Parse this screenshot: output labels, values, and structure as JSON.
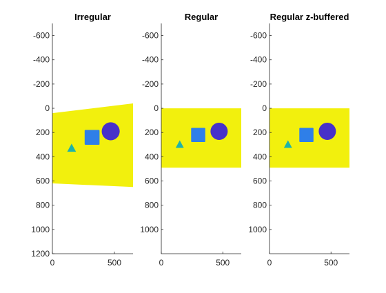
{
  "colors": {
    "background": "#ffffff",
    "axis": "#262626",
    "image_fill": "#f2f00d",
    "triangle": "#1fb3a8",
    "square": "#2f7fe8",
    "circle": "#4731c9"
  },
  "chart_data": [
    {
      "type": "image",
      "title": "Irregular",
      "xlim": [
        0,
        650
      ],
      "ylim": [
        -700,
        1200
      ],
      "y_reversed": true,
      "xticks": [
        0,
        500
      ],
      "yticks": [
        -600,
        -400,
        -200,
        0,
        200,
        400,
        600,
        800,
        1000,
        1200
      ],
      "xtick_labels": [
        "0",
        "500"
      ],
      "ytick_labels": [
        "-600",
        "-400",
        "-200",
        "0",
        "200",
        "400",
        "600",
        "800",
        "1000",
        "1200"
      ],
      "grid": false,
      "image_region": [
        [
          0,
          40
        ],
        [
          650,
          -40
        ],
        [
          650,
          650
        ],
        [
          0,
          620
        ]
      ],
      "shapes": [
        {
          "kind": "triangle",
          "center": [
            155,
            330
          ],
          "size": 75
        },
        {
          "kind": "square",
          "center": [
            320,
            240
          ],
          "size": 120
        },
        {
          "kind": "circle",
          "center": [
            470,
            190
          ],
          "size": 145
        }
      ]
    },
    {
      "type": "image",
      "title": "Regular",
      "xlim": [
        0,
        650
      ],
      "ylim": [
        -700,
        1200
      ],
      "y_reversed": true,
      "xticks": [
        0,
        500
      ],
      "yticks": [
        -600,
        -400,
        -200,
        0,
        200,
        400,
        600,
        800,
        1000
      ],
      "xtick_labels": [
        "0",
        "500"
      ],
      "ytick_labels": [
        "-600",
        "-400",
        "-200",
        "0",
        "200",
        "400",
        "600",
        "800",
        "1000"
      ],
      "grid": false,
      "image_region": [
        [
          0,
          0
        ],
        [
          650,
          0
        ],
        [
          650,
          490
        ],
        [
          0,
          490
        ]
      ],
      "shapes": [
        {
          "kind": "triangle",
          "center": [
            150,
            300
          ],
          "size": 70
        },
        {
          "kind": "square",
          "center": [
            300,
            220
          ],
          "size": 115
        },
        {
          "kind": "circle",
          "center": [
            470,
            190
          ],
          "size": 140
        }
      ]
    },
    {
      "type": "image",
      "title": "Regular z-buffered",
      "xlim": [
        0,
        650
      ],
      "ylim": [
        -700,
        1200
      ],
      "y_reversed": true,
      "xticks": [
        0,
        500
      ],
      "yticks": [
        -600,
        -400,
        -200,
        0,
        200,
        400,
        600,
        800,
        1000
      ],
      "xtick_labels": [
        "0",
        "500"
      ],
      "ytick_labels": [
        "-600",
        "-400",
        "-200",
        "0",
        "200",
        "400",
        "600",
        "800",
        "1000"
      ],
      "grid": false,
      "image_region": [
        [
          0,
          0
        ],
        [
          650,
          0
        ],
        [
          650,
          490
        ],
        [
          0,
          490
        ]
      ],
      "shapes": [
        {
          "kind": "triangle",
          "center": [
            150,
            300
          ],
          "size": 70
        },
        {
          "kind": "square",
          "center": [
            300,
            220
          ],
          "size": 115
        },
        {
          "kind": "circle",
          "center": [
            470,
            190
          ],
          "size": 140
        }
      ]
    }
  ]
}
